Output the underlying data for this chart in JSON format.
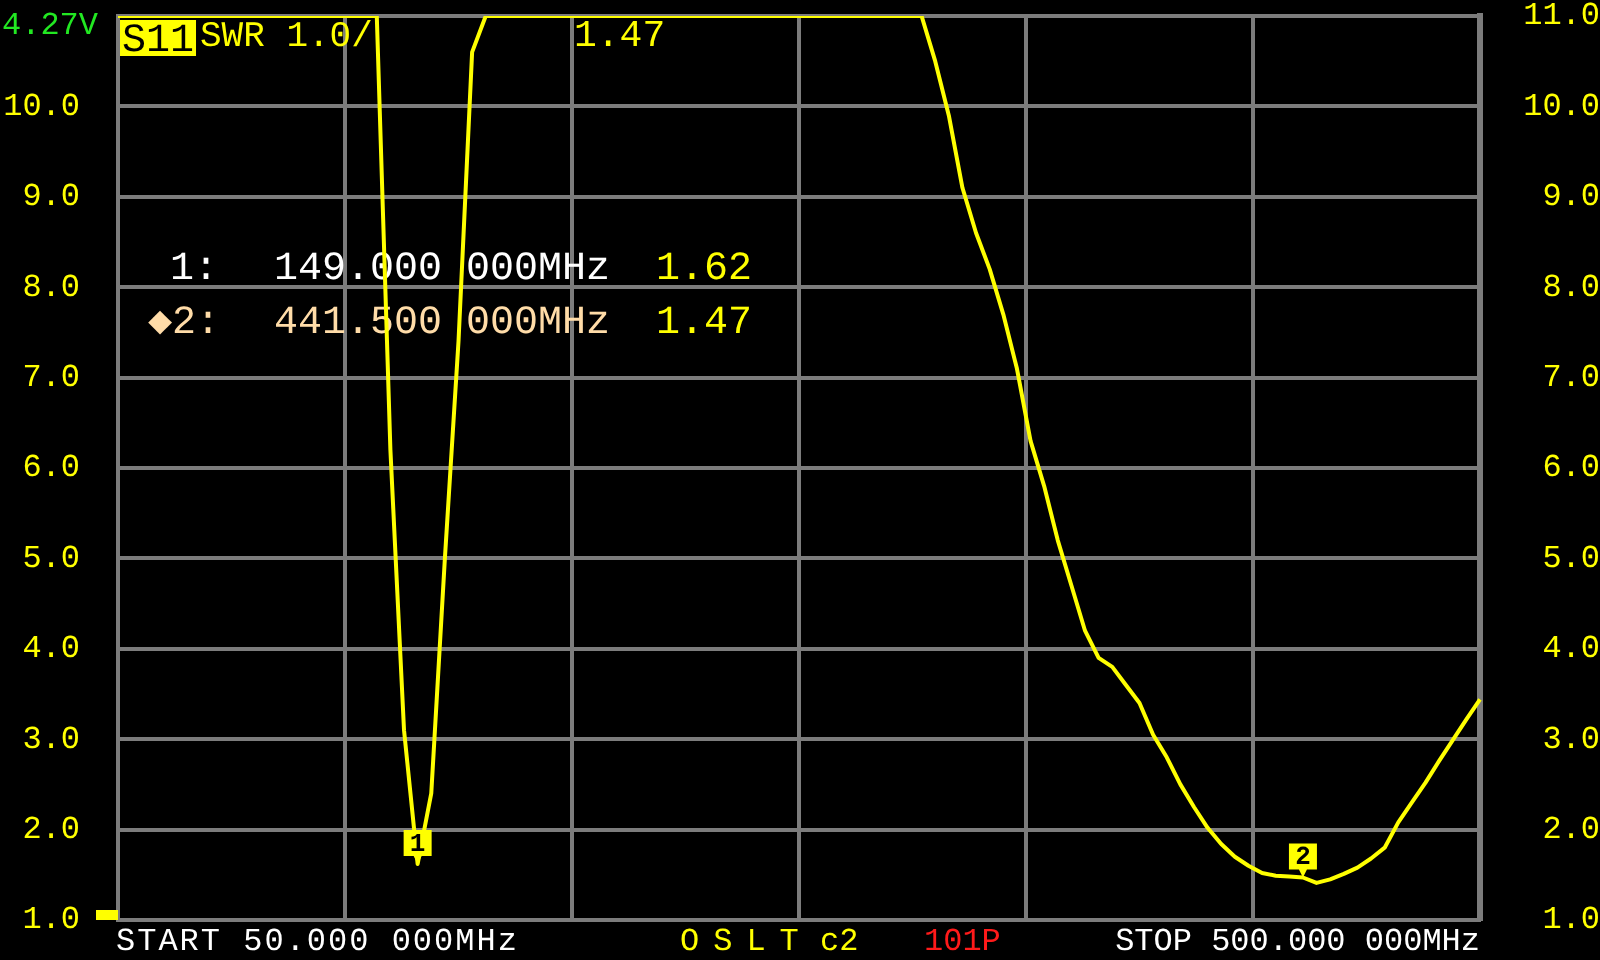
{
  "chart_data": {
    "type": "line",
    "annotations": [
      "4.27V",
      "SWR 1.0/",
      "1.47",
      "1:",
      "149.000 000MHz",
      "1.62",
      "◆2:",
      "441.500 000MHz",
      "1.47",
      "START 50.000 000MHz",
      "OSLT",
      "c2",
      "101P",
      "STOP 500.000 000MHz",
      {
        "text": "1",
        "y": 1.62
      },
      {
        "text": "2",
        "y": 1.47
      }
    ],
    "categories": [
      null,
      null,
      null,
      null,
      null,
      null,
      null,
      null,
      null,
      null,
      null,
      null,
      null,
      null,
      null,
      null,
      null,
      null,
      null,
      null,
      null,
      null,
      null,
      null,
      null,
      null,
      null,
      null,
      null,
      null,
      null,
      null,
      null,
      null,
      null,
      null,
      null,
      null,
      null,
      null,
      null,
      null,
      null,
      null,
      null,
      null,
      null,
      null,
      null,
      null,
      null,
      null,
      null,
      null,
      null,
      null,
      null,
      null,
      null,
      null,
      null,
      null,
      null,
      null,
      null,
      null,
      null,
      null,
      null,
      null,
      null,
      null,
      null,
      null,
      null,
      null,
      null,
      null,
      null,
      null,
      null,
      null,
      null,
      null,
      null,
      null,
      null,
      null,
      null,
      null,
      null,
      null,
      null,
      null,
      null,
      null,
      null,
      null,
      null,
      null,
      null
    ],
    "series": [
      {
        "name": "S11",
        "color": "#ffff00",
        "values": [
          11,
          11,
          11,
          11,
          11,
          11,
          11,
          11,
          11,
          11,
          11,
          11,
          11,
          11,
          11,
          11,
          11,
          11,
          11,
          11,
          6.2,
          3.1,
          1.62,
          2.4,
          5.0,
          7.4,
          10.6,
          11,
          11,
          11,
          11,
          11,
          11,
          11,
          11,
          11,
          11,
          11,
          11,
          11,
          11,
          11,
          11,
          11,
          11,
          11,
          11,
          11,
          11,
          11,
          11,
          11,
          11,
          11,
          11,
          11,
          11,
          11,
          11,
          11,
          10.5,
          9.9,
          9.1,
          8.6,
          8.2,
          7.7,
          7.1,
          6.3,
          5.8,
          5.2,
          4.7,
          4.2,
          3.9,
          3.8,
          3.6,
          3.4,
          3.05,
          2.8,
          2.5,
          2.25,
          2.02,
          1.84,
          1.7,
          1.6,
          1.52,
          1.49,
          1.48,
          1.47,
          1.41,
          1.45,
          1.51,
          1.58,
          1.68,
          1.8,
          2.08,
          2.3,
          2.52,
          2.76,
          2.99,
          3.22,
          3.44
        ]
      }
    ],
    "ylim": [
      1,
      11
    ],
    "yticks": [
      {
        "value": 1,
        "label": "1.0"
      },
      {
        "value": 2,
        "label": "2.0"
      },
      {
        "value": 3,
        "label": "3.0"
      },
      {
        "value": 4,
        "label": "4.0"
      },
      {
        "value": 5,
        "label": "5.0"
      },
      {
        "value": 6,
        "label": "6.0"
      },
      {
        "value": 7,
        "label": "7.0"
      },
      {
        "value": 8,
        "label": "8.0"
      },
      {
        "value": 9,
        "label": "9.0"
      },
      {
        "value": 10,
        "label": "10.0"
      },
      {
        "value": 11,
        "label": null
      }
    ],
    "y2lim": [
      1,
      11
    ],
    "y2ticks": [
      {
        "value": 1,
        "label": "1.0"
      },
      {
        "value": 2,
        "label": "2.0"
      },
      {
        "value": 3,
        "label": "3.0"
      },
      {
        "value": 4,
        "label": "4.0"
      },
      {
        "value": 5,
        "label": "5.0"
      },
      {
        "value": 6,
        "label": "6.0"
      },
      {
        "value": 7,
        "label": "7.0"
      },
      {
        "value": 8,
        "label": "8.0"
      },
      {
        "value": 9,
        "label": "9.0"
      },
      {
        "value": 10,
        "label": "10.0"
      },
      {
        "value": 11,
        "label": "11.0"
      }
    ],
    "grid": true,
    "legend": "top left",
    "marker": "none",
    "line_style": "solid"
  }
}
